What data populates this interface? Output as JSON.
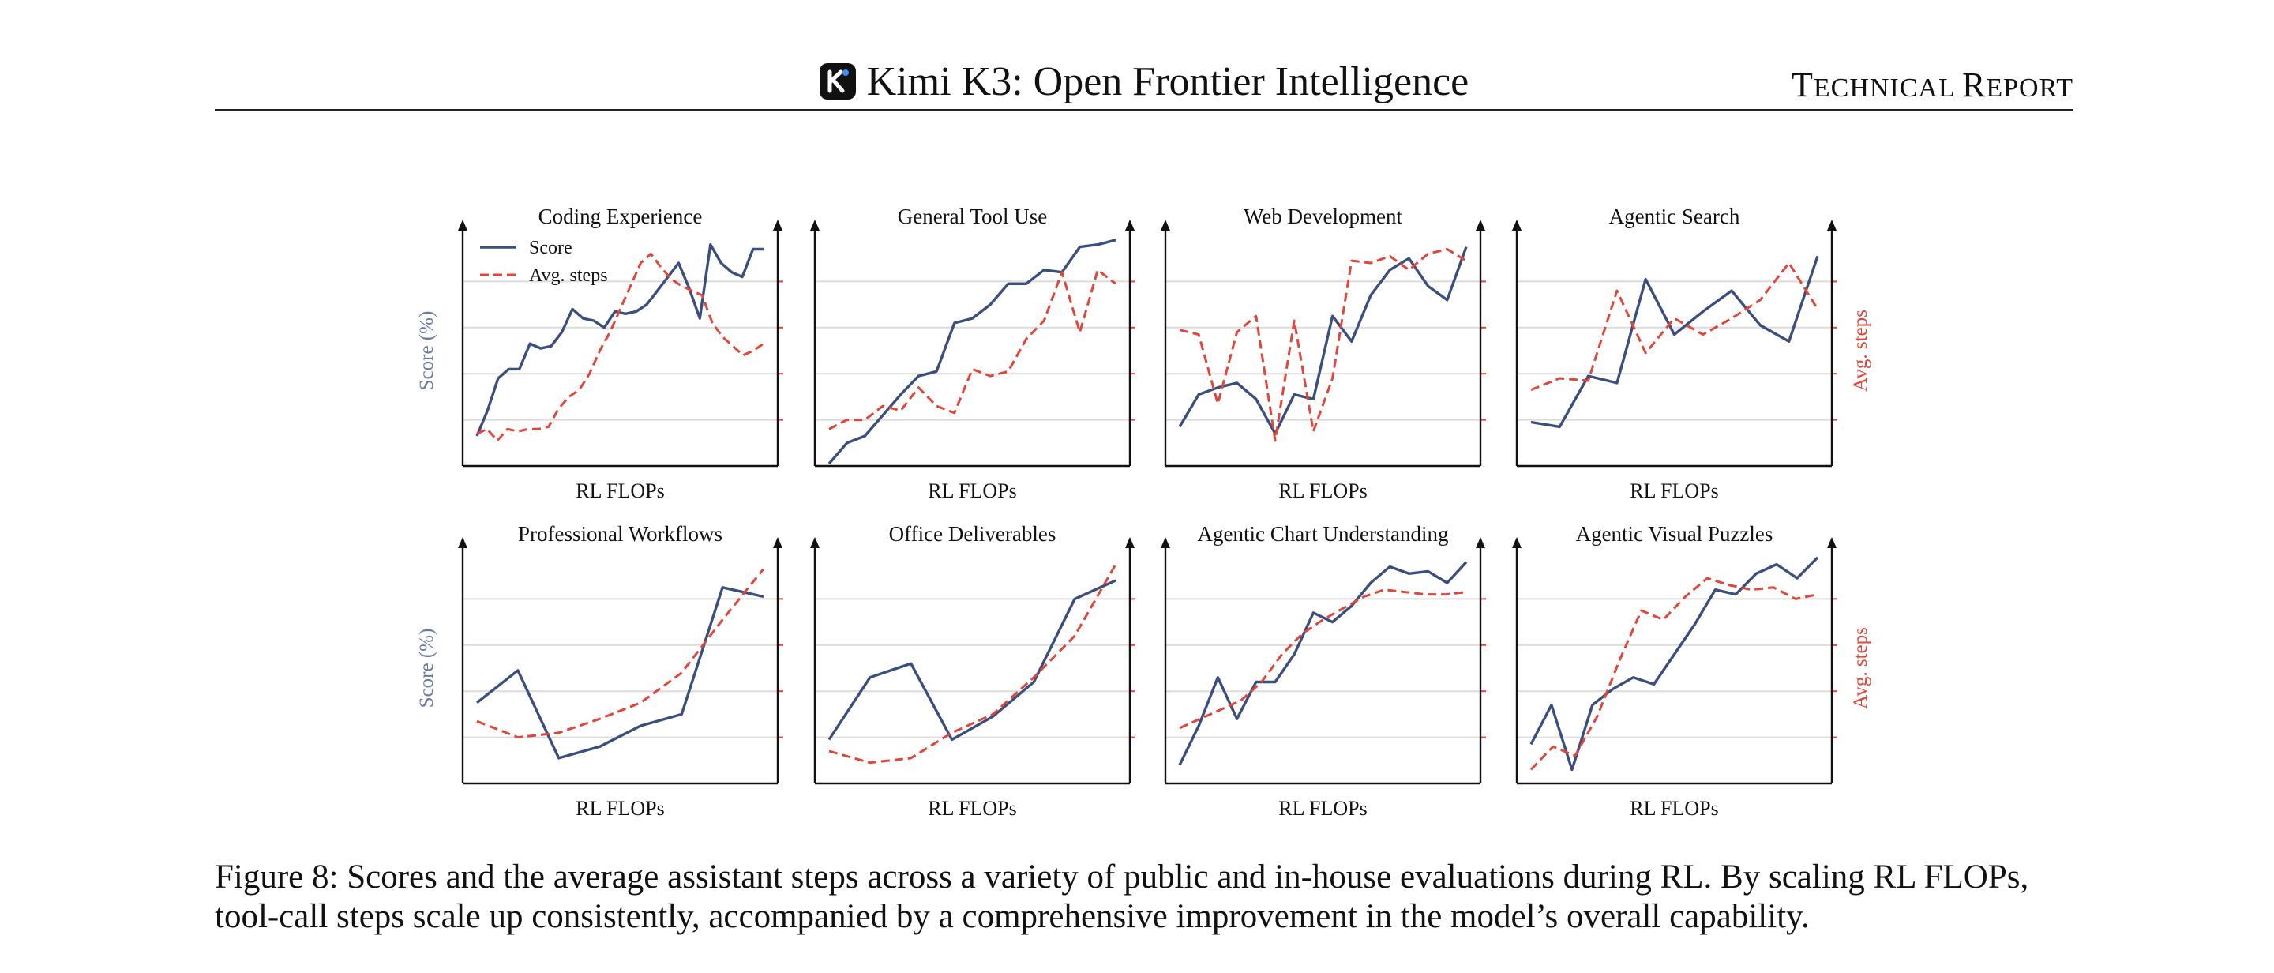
{
  "header": {
    "title": "Kimi K3: Open Frontier Intelligence",
    "right_label_parts": [
      "T",
      "ECHNICAL ",
      "R",
      "EPORT"
    ]
  },
  "colors": {
    "score": "#3b4e7e",
    "steps": "#e0463a",
    "grid": "#dcdcdc",
    "axis": "#111111"
  },
  "legend": {
    "score": "Score",
    "steps": "Avg. steps"
  },
  "axis_labels": {
    "x": "RL FLOPs",
    "y_left": "Score (%)",
    "y_right": "Avg. steps"
  },
  "chart_data": [
    {
      "type": "line",
      "title": "Coding Experience",
      "xlabel": "RL FLOPs",
      "ylabel": "Score (%)",
      "ylabel_right": "",
      "legend": "top-left",
      "grid": true,
      "ylim": [
        0,
        1
      ],
      "series": [
        {
          "name": "Score",
          "style": "solid",
          "values": [
            0.13,
            0.24,
            0.38,
            0.42,
            0.42,
            0.53,
            0.51,
            0.52,
            0.58,
            0.68,
            0.64,
            0.63,
            0.6,
            0.67,
            0.66,
            0.67,
            0.7,
            0.76,
            0.82,
            0.88,
            0.77,
            0.64,
            0.96,
            0.88,
            0.84,
            0.82,
            0.94,
            0.94
          ]
        },
        {
          "name": "Avg. steps",
          "style": "dashed",
          "values": [
            0.14,
            0.16,
            0.11,
            0.16,
            0.15,
            0.16,
            0.16,
            0.17,
            0.25,
            0.3,
            0.33,
            0.4,
            0.5,
            0.58,
            0.68,
            0.78,
            0.88,
            0.92,
            0.86,
            0.81,
            0.78,
            0.76,
            0.74,
            0.62,
            0.56,
            0.52,
            0.48,
            0.5,
            0.53
          ]
        }
      ]
    },
    {
      "type": "line",
      "title": "General Tool Use",
      "xlabel": "RL FLOPs",
      "ylabel": "",
      "ylabel_right": "",
      "legend": "none",
      "grid": true,
      "ylim": [
        0,
        1
      ],
      "series": [
        {
          "name": "",
          "style": "solid",
          "values": [
            0.01,
            0.1,
            0.13,
            0.22,
            0.31,
            0.39,
            0.41,
            0.62,
            0.64,
            0.7,
            0.79,
            0.79,
            0.85,
            0.84,
            0.95,
            0.96,
            0.98
          ]
        },
        {
          "name": "",
          "style": "dashed",
          "values": [
            0.16,
            0.2,
            0.2,
            0.26,
            0.24,
            0.34,
            0.26,
            0.23,
            0.42,
            0.39,
            0.41,
            0.55,
            0.63,
            0.84,
            0.58,
            0.85,
            0.79
          ]
        }
      ]
    },
    {
      "type": "line",
      "title": "Web Development",
      "xlabel": "RL FLOPs",
      "ylabel": "",
      "ylabel_right": "",
      "legend": "none",
      "grid": true,
      "ylim": [
        0,
        1
      ],
      "series": [
        {
          "name": "",
          "style": "solid",
          "values": [
            0.17,
            0.31,
            0.34,
            0.36,
            0.29,
            0.14,
            0.31,
            0.29,
            0.65,
            0.54,
            0.74,
            0.85,
            0.9,
            0.78,
            0.72,
            0.95
          ]
        },
        {
          "name": "",
          "style": "dashed",
          "values": [
            0.59,
            0.57,
            0.27,
            0.58,
            0.65,
            0.11,
            0.63,
            0.15,
            0.38,
            0.89,
            0.88,
            0.91,
            0.85,
            0.92,
            0.94,
            0.89
          ]
        }
      ]
    },
    {
      "type": "line",
      "title": "Agentic Search",
      "xlabel": "RL FLOPs",
      "ylabel": "",
      "ylabel_right": "Avg. steps",
      "legend": "none",
      "grid": true,
      "ylim": [
        0,
        1
      ],
      "series": [
        {
          "name": "",
          "style": "solid",
          "values": [
            0.19,
            0.17,
            0.39,
            0.36,
            0.81,
            0.57,
            0.67,
            0.76,
            0.61,
            0.54,
            0.91
          ]
        },
        {
          "name": "",
          "style": "dashed",
          "values": [
            0.33,
            0.38,
            0.37,
            0.76,
            0.49,
            0.64,
            0.57,
            0.64,
            0.72,
            0.88,
            0.68
          ]
        }
      ]
    },
    {
      "type": "line",
      "title": "Professional Workflows",
      "xlabel": "RL FLOPs",
      "ylabel": "Score (%)",
      "ylabel_right": "",
      "legend": "none",
      "grid": true,
      "ylim": [
        0,
        1
      ],
      "series": [
        {
          "name": "",
          "style": "solid",
          "values": [
            0.35,
            0.49,
            0.11,
            0.16,
            0.25,
            0.3,
            0.85,
            0.81
          ]
        },
        {
          "name": "",
          "style": "dashed",
          "values": [
            0.27,
            0.2,
            0.22,
            0.28,
            0.35,
            0.48,
            0.71,
            0.93
          ]
        }
      ]
    },
    {
      "type": "line",
      "title": "Office Deliverables",
      "xlabel": "RL FLOPs",
      "ylabel": "",
      "ylabel_right": "",
      "legend": "none",
      "grid": true,
      "ylim": [
        0,
        1
      ],
      "series": [
        {
          "name": "",
          "style": "solid",
          "values": [
            0.19,
            0.46,
            0.52,
            0.19,
            0.29,
            0.44,
            0.8,
            0.88
          ]
        },
        {
          "name": "",
          "style": "dashed",
          "values": [
            0.14,
            0.09,
            0.11,
            0.22,
            0.3,
            0.46,
            0.64,
            0.95
          ]
        }
      ]
    },
    {
      "type": "line",
      "title": "Agentic Chart Understanding",
      "xlabel": "RL FLOPs",
      "ylabel": "",
      "ylabel_right": "",
      "legend": "none",
      "grid": true,
      "ylim": [
        0,
        1
      ],
      "series": [
        {
          "name": "",
          "style": "solid",
          "values": [
            0.08,
            0.25,
            0.46,
            0.28,
            0.44,
            0.44,
            0.56,
            0.74,
            0.7,
            0.77,
            0.87,
            0.94,
            0.91,
            0.92,
            0.87,
            0.96
          ]
        },
        {
          "name": "",
          "style": "dashed",
          "values": [
            0.24,
            0.28,
            0.32,
            0.36,
            0.44,
            0.56,
            0.65,
            0.71,
            0.76,
            0.81,
            0.84,
            0.83,
            0.82,
            0.82,
            0.83
          ]
        }
      ]
    },
    {
      "type": "line",
      "title": "Agentic Visual Puzzles",
      "xlabel": "RL FLOPs",
      "ylabel": "",
      "ylabel_right": "Avg. steps",
      "legend": "none",
      "grid": true,
      "ylim": [
        0,
        1
      ],
      "series": [
        {
          "name": "",
          "style": "solid",
          "values": [
            0.17,
            0.34,
            0.06,
            0.34,
            0.41,
            0.46,
            0.43,
            0.56,
            0.69,
            0.84,
            0.82,
            0.91,
            0.95,
            0.89,
            0.98
          ]
        },
        {
          "name": "",
          "style": "dashed",
          "values": [
            0.06,
            0.16,
            0.12,
            0.29,
            0.53,
            0.75,
            0.71,
            0.81,
            0.89,
            0.86,
            0.84,
            0.85,
            0.8,
            0.82
          ]
        }
      ]
    }
  ],
  "caption": "Figure 8: Scores and the average assistant steps across a variety of public and in-house evaluations during RL. By scaling RL FLOPs, tool-call steps scale up consistently, accompanied by a comprehensive improvement in the model’s overall capability."
}
